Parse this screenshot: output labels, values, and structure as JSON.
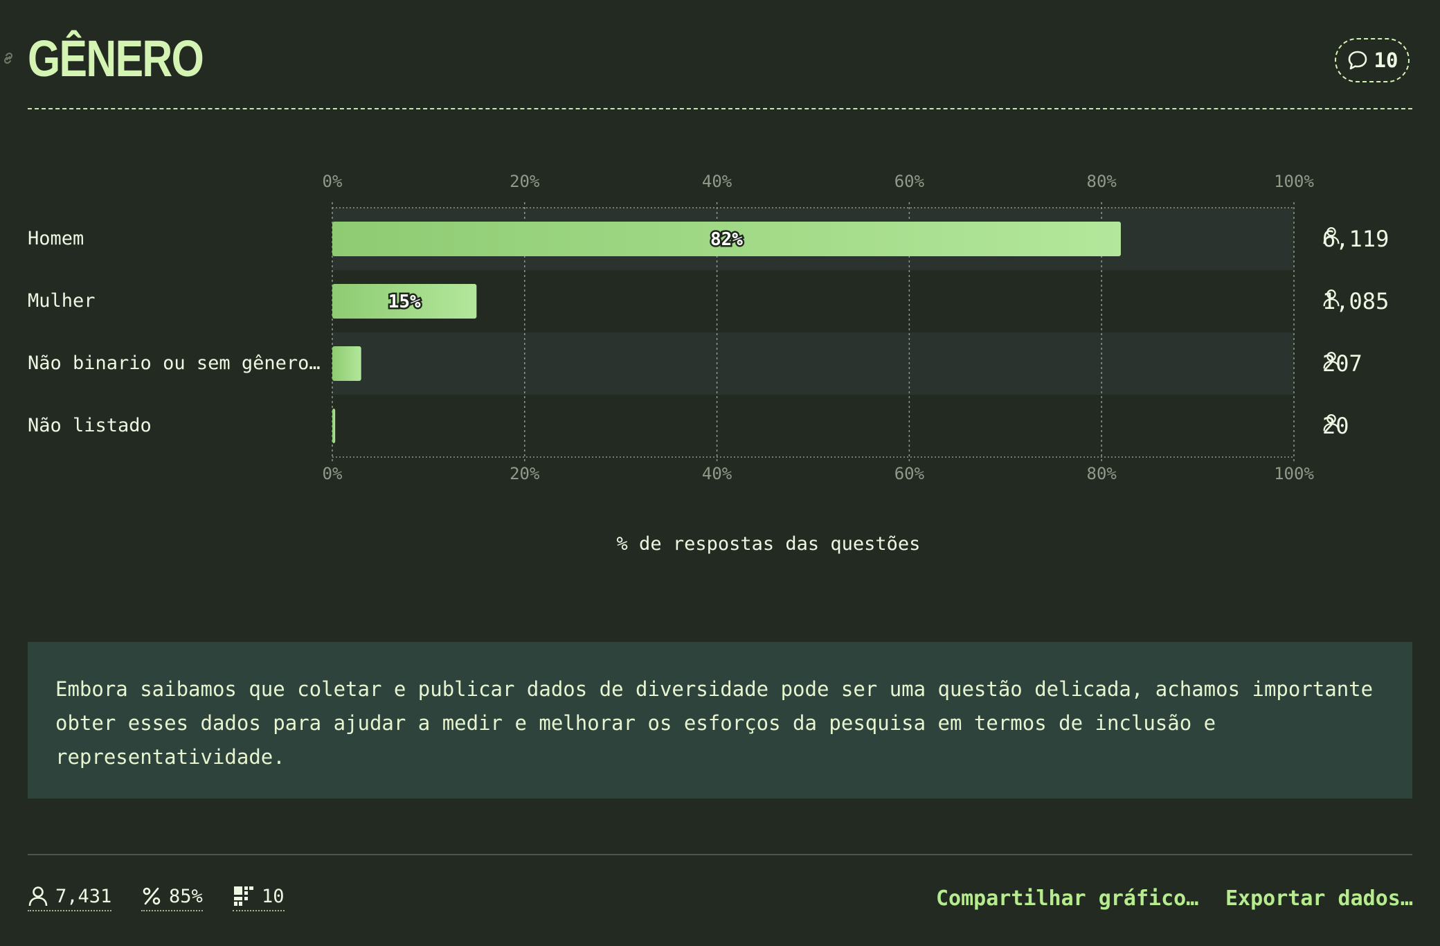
{
  "header": {
    "title": "GÊNERO",
    "comments_count": "10"
  },
  "colors": {
    "background": "#232a21",
    "accent": "#b6ec8f",
    "bar_start": "#8ecb72",
    "bar_end": "#b3e79b",
    "note_background": "#2f433d",
    "row_alt": "#2b332e"
  },
  "chart_data": {
    "type": "bar",
    "orientation": "horizontal",
    "categories": [
      "Homem",
      "Mulher",
      "Não binario ou sem gênero…",
      "Não listado"
    ],
    "values": [
      82,
      15,
      3,
      0.3
    ],
    "value_labels": [
      "82%",
      "15%",
      "",
      ""
    ],
    "counts": [
      "6,119",
      "1,085",
      "207",
      "20"
    ],
    "xlim": [
      0,
      100
    ],
    "ticks": [
      "0%",
      "20%",
      "40%",
      "60%",
      "80%",
      "100%"
    ],
    "tick_values": [
      0,
      20,
      40,
      60,
      80,
      100
    ],
    "xlabel": "% de respostas das questões",
    "grid": true
  },
  "note": {
    "text": "Embora saibamos que coletar e publicar dados de diversidade pode ser uma questão delicada, achamos importante obter esses dados para ajudar a medir e melhorar os esforços da pesquisa em termos de inclusão e representatividade."
  },
  "footer": {
    "respondents": "7,431",
    "percent": "85%",
    "questions": "10",
    "share_label": "Compartilhar gráfico…",
    "export_label": "Exportar dados…"
  },
  "icons": {
    "link": "link-icon",
    "comment": "comment-bubble-icon",
    "person": "person-icon",
    "percent": "percent-icon",
    "blocks": "blocks-icon"
  }
}
